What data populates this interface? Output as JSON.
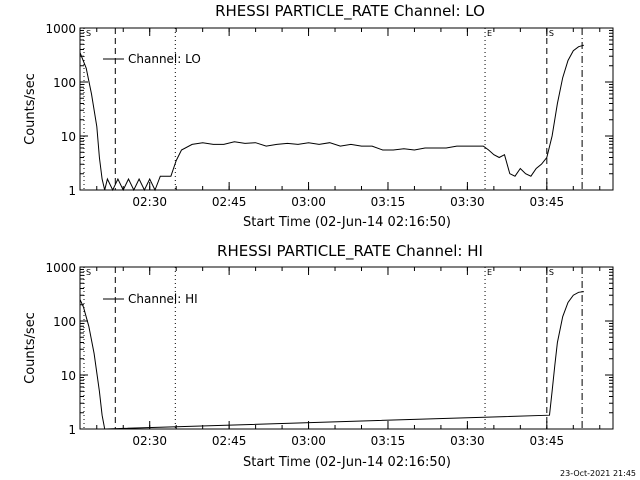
{
  "footer": {
    "timestamp": "23-Oct-2021 21:45"
  },
  "chart_data": [
    {
      "type": "line",
      "title": "RHESSI PARTICLE_RATE Channel: LO",
      "xlabel": "Start Time (02-Jun-14 02:16:50)",
      "ylabel": "Counts/sec",
      "yscale": "log",
      "xlim": [
        "02:16:50",
        "03:57:30"
      ],
      "ylim": [
        1,
        1000
      ],
      "xticks": [
        "02:30",
        "02:45",
        "03:00",
        "03:15",
        "03:30",
        "03:45"
      ],
      "yticks": [
        "1",
        "10",
        "100",
        "1000"
      ],
      "legend": {
        "position": "top-left",
        "entries": [
          "Channel: LO"
        ]
      },
      "markers": [
        {
          "time": "02:16:50",
          "style": "dotted",
          "label": "S"
        },
        {
          "time": "02:23:30",
          "style": "dashed",
          "label": ""
        },
        {
          "time": "02:34:50",
          "style": "dotted",
          "label": ""
        },
        {
          "time": "03:33:20",
          "style": "dotted",
          "label": "E"
        },
        {
          "time": "03:45:00",
          "style": "dashed",
          "label": "S"
        },
        {
          "time": "03:51:40",
          "style": "dashdot",
          "label": ""
        }
      ],
      "series": [
        {
          "name": "Channel: LO",
          "x": [
            "02:16:50",
            "02:18:00",
            "02:19:00",
            "02:20:00",
            "02:20:30",
            "02:21:00",
            "02:21:30",
            "02:22:00",
            "02:23:00",
            "02:24:00",
            "02:25:00",
            "02:26:00",
            "02:27:00",
            "02:28:00",
            "02:29:00",
            "02:30:00",
            "02:31:00",
            "02:32:00",
            "02:33:00",
            "02:34:00",
            "02:34:30",
            "02:35:00",
            "02:36:00",
            "02:38:00",
            "02:40:00",
            "02:42:00",
            "02:44:00",
            "02:46:00",
            "02:48:00",
            "02:50:00",
            "02:52:00",
            "02:54:00",
            "02:56:00",
            "02:58:00",
            "03:00:00",
            "03:02:00",
            "03:04:00",
            "03:06:00",
            "03:08:00",
            "03:10:00",
            "03:12:00",
            "03:14:00",
            "03:16:00",
            "03:18:00",
            "03:20:00",
            "03:22:00",
            "03:24:00",
            "03:26:00",
            "03:28:00",
            "03:30:00",
            "03:32:00",
            "03:33:00",
            "03:34:00",
            "03:35:00",
            "03:36:00",
            "03:37:00",
            "03:38:00",
            "03:39:00",
            "03:40:00",
            "03:41:00",
            "03:42:00",
            "03:43:00",
            "03:44:00",
            "03:45:00",
            "03:46:00",
            "03:47:00",
            "03:48:00",
            "03:49:00",
            "03:50:00",
            "03:51:00",
            "03:52:00"
          ],
          "y": [
            350,
            180,
            60,
            15,
            4,
            1.6,
            1,
            1.6,
            1,
            1.6,
            1,
            1.6,
            1,
            1.6,
            1,
            1.6,
            1,
            1.8,
            1.8,
            1.8,
            2.5,
            3.5,
            5.5,
            7,
            7.5,
            7,
            7,
            7.8,
            7.3,
            7.5,
            6.5,
            7,
            7.3,
            7,
            7.5,
            7,
            7.5,
            6.5,
            7,
            6.5,
            6.5,
            5.5,
            5.5,
            5.8,
            5.5,
            6,
            6,
            6,
            6.5,
            6.5,
            6.5,
            6.5,
            5.5,
            4.5,
            4,
            4.5,
            2,
            1.8,
            2.5,
            2,
            1.8,
            2.5,
            3,
            4,
            10,
            40,
            120,
            250,
            380,
            450,
            480
          ]
        }
      ]
    },
    {
      "type": "line",
      "title": "RHESSI PARTICLE_RATE Channel: HI",
      "xlabel": "Start Time (02-Jun-14 02:16:50)",
      "ylabel": "Counts/sec",
      "yscale": "log",
      "xlim": [
        "02:16:50",
        "03:57:30"
      ],
      "ylim": [
        1,
        1000
      ],
      "xticks": [
        "02:30",
        "02:45",
        "03:00",
        "03:15",
        "03:30",
        "03:45"
      ],
      "yticks": [
        "1",
        "10",
        "100",
        "1000"
      ],
      "legend": {
        "position": "top-left",
        "entries": [
          "Channel: HI"
        ]
      },
      "markers": [
        {
          "time": "02:16:50",
          "style": "dotted",
          "label": "S"
        },
        {
          "time": "02:23:30",
          "style": "dashed",
          "label": ""
        },
        {
          "time": "02:34:50",
          "style": "dotted",
          "label": ""
        },
        {
          "time": "03:33:20",
          "style": "dotted",
          "label": "E"
        },
        {
          "time": "03:45:00",
          "style": "dashed",
          "label": "S"
        },
        {
          "time": "03:51:40",
          "style": "dashdot",
          "label": ""
        }
      ],
      "series": [
        {
          "name": "Channel: HI",
          "x": [
            "02:16:50",
            "02:17:30",
            "02:18:30",
            "02:19:30",
            "02:20:30",
            "02:21:00",
            "02:21:30",
            "03:45:30",
            "03:46:00",
            "03:46:30",
            "03:47:00",
            "03:48:00",
            "03:49:00",
            "03:50:00",
            "03:51:00",
            "03:52:00"
          ],
          "y": [
            250,
            180,
            80,
            25,
            5,
            1.8,
            1,
            1.8,
            5,
            15,
            40,
            120,
            220,
            300,
            340,
            350
          ]
        }
      ]
    }
  ]
}
